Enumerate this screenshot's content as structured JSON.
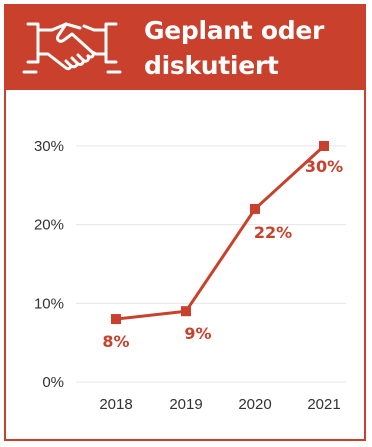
{
  "header": {
    "title_line1": "Geplant oder",
    "title_line2": "diskutiert",
    "icon": "handshake-icon"
  },
  "colors": {
    "accent": "#c9402c",
    "grid": "#e6e6e6",
    "text": "#333333"
  },
  "chart_data": {
    "type": "line",
    "categories": [
      "2018",
      "2019",
      "2020",
      "2021"
    ],
    "series": [
      {
        "values": [
          8,
          9,
          22,
          30
        ]
      }
    ],
    "data_labels": [
      "8%",
      "9%",
      "22%",
      "30%"
    ],
    "y_ticks": [
      "0%",
      "10%",
      "20%",
      "30%"
    ],
    "y_tick_values": [
      0,
      10,
      20,
      30
    ],
    "ylim": [
      0,
      30
    ],
    "grid": true,
    "legend": "none",
    "marker": "square"
  }
}
